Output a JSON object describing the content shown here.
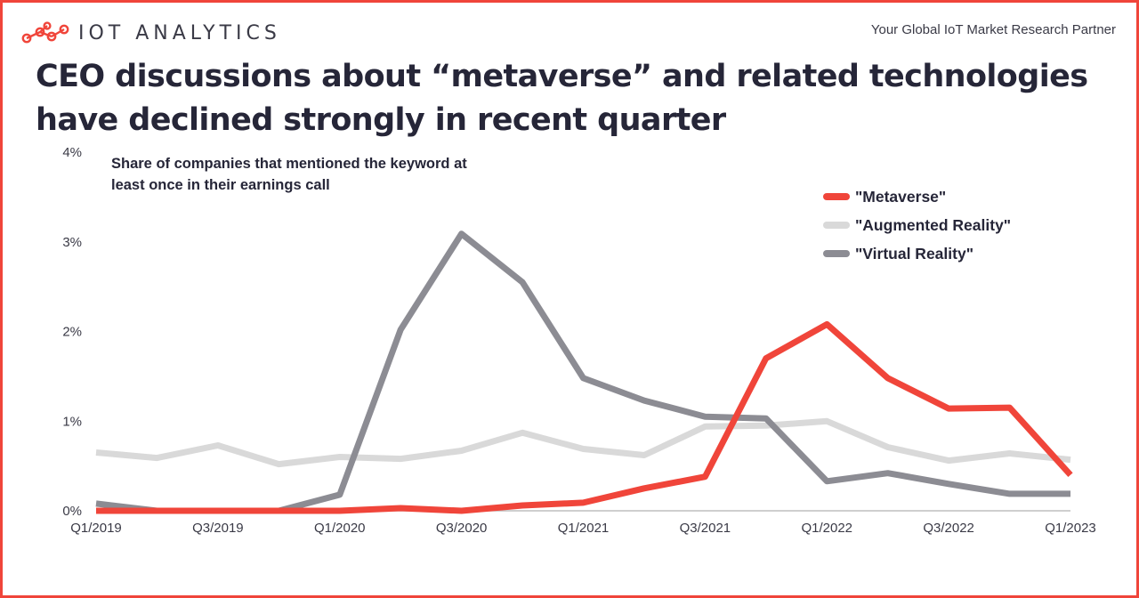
{
  "brand": {
    "name": "IOT ANALYTICS",
    "logo_icon": "molecule-nodes-icon"
  },
  "tagline": "Your Global IoT Market Research Partner",
  "colors": {
    "frame": "#f0453a",
    "metaverse": "#f0453a",
    "augmented": "#d9d9d9",
    "virtual": "#8c8c93"
  },
  "chart_data": {
    "type": "line",
    "title": "CEO discussions about “metaverse” and related technologies have declined strongly in recent quarter",
    "subtitle": "Share of companies that mentioned the keyword at least once in their earnings call",
    "x": [
      "Q1/2019",
      "Q2/2019",
      "Q3/2019",
      "Q4/2019",
      "Q1/2020",
      "Q2/2020",
      "Q3/2020",
      "Q4/2020",
      "Q1/2021",
      "Q2/2021",
      "Q3/2021",
      "Q4/2021",
      "Q1/2022",
      "Q2/2022",
      "Q3/2022",
      "Q4/2022",
      "Q1/2023"
    ],
    "x_tick_labels": [
      "Q1/2019",
      "Q3/2019",
      "Q1/2020",
      "Q3/2020",
      "Q1/2021",
      "Q3/2021",
      "Q1/2022",
      "Q3/2022",
      "Q1/2023"
    ],
    "y_tick_labels": [
      "0%",
      "1%",
      "2%",
      "3%",
      "4%"
    ],
    "ylim": [
      0,
      4
    ],
    "y_unit": "%",
    "grid": false,
    "legend_position": "top-right",
    "series": [
      {
        "name": "\"Metaverse\"",
        "color": "#f0453a",
        "values": [
          0.0,
          0.0,
          0.0,
          0.0,
          0.0,
          0.03,
          0.0,
          0.06,
          0.09,
          0.25,
          0.38,
          1.7,
          2.08,
          1.48,
          1.14,
          1.15,
          0.4
        ]
      },
      {
        "name": "\"Augmented Reality\"",
        "color": "#d9d9d9",
        "values": [
          0.65,
          0.59,
          0.73,
          0.52,
          0.6,
          0.58,
          0.67,
          0.87,
          0.69,
          0.62,
          0.94,
          0.95,
          1.0,
          0.71,
          0.56,
          0.64,
          0.57
        ]
      },
      {
        "name": "\"Virtual Reality\"",
        "color": "#8c8c93",
        "values": [
          0.08,
          0.0,
          0.0,
          0.0,
          0.18,
          2.02,
          3.09,
          2.55,
          1.48,
          1.23,
          1.05,
          1.03,
          0.33,
          0.42,
          0.3,
          0.19,
          0.19
        ]
      }
    ]
  }
}
